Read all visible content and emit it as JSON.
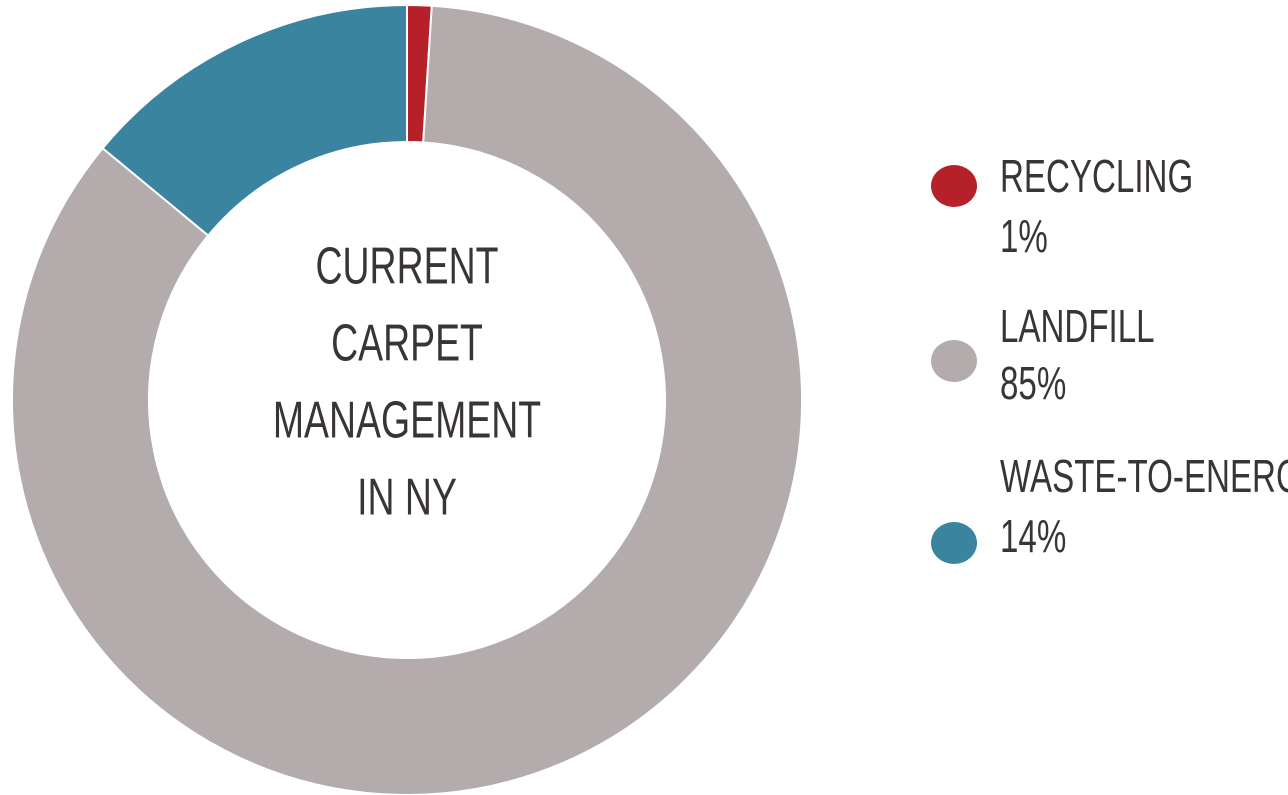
{
  "chart_data": {
    "type": "pie",
    "donut": true,
    "title": [
      "CURRENT",
      "CARPET",
      "MANAGEMENT",
      "IN NY"
    ],
    "categories": [
      "RECYCLING",
      "LANDFILL",
      "WASTE-TO-ENERGY"
    ],
    "values": [
      1,
      85,
      14
    ],
    "value_labels": [
      "1%",
      "85%",
      "14%"
    ],
    "colors": [
      "#b52029",
      "#b3abac",
      "#3a84a0"
    ],
    "legend": "right"
  }
}
